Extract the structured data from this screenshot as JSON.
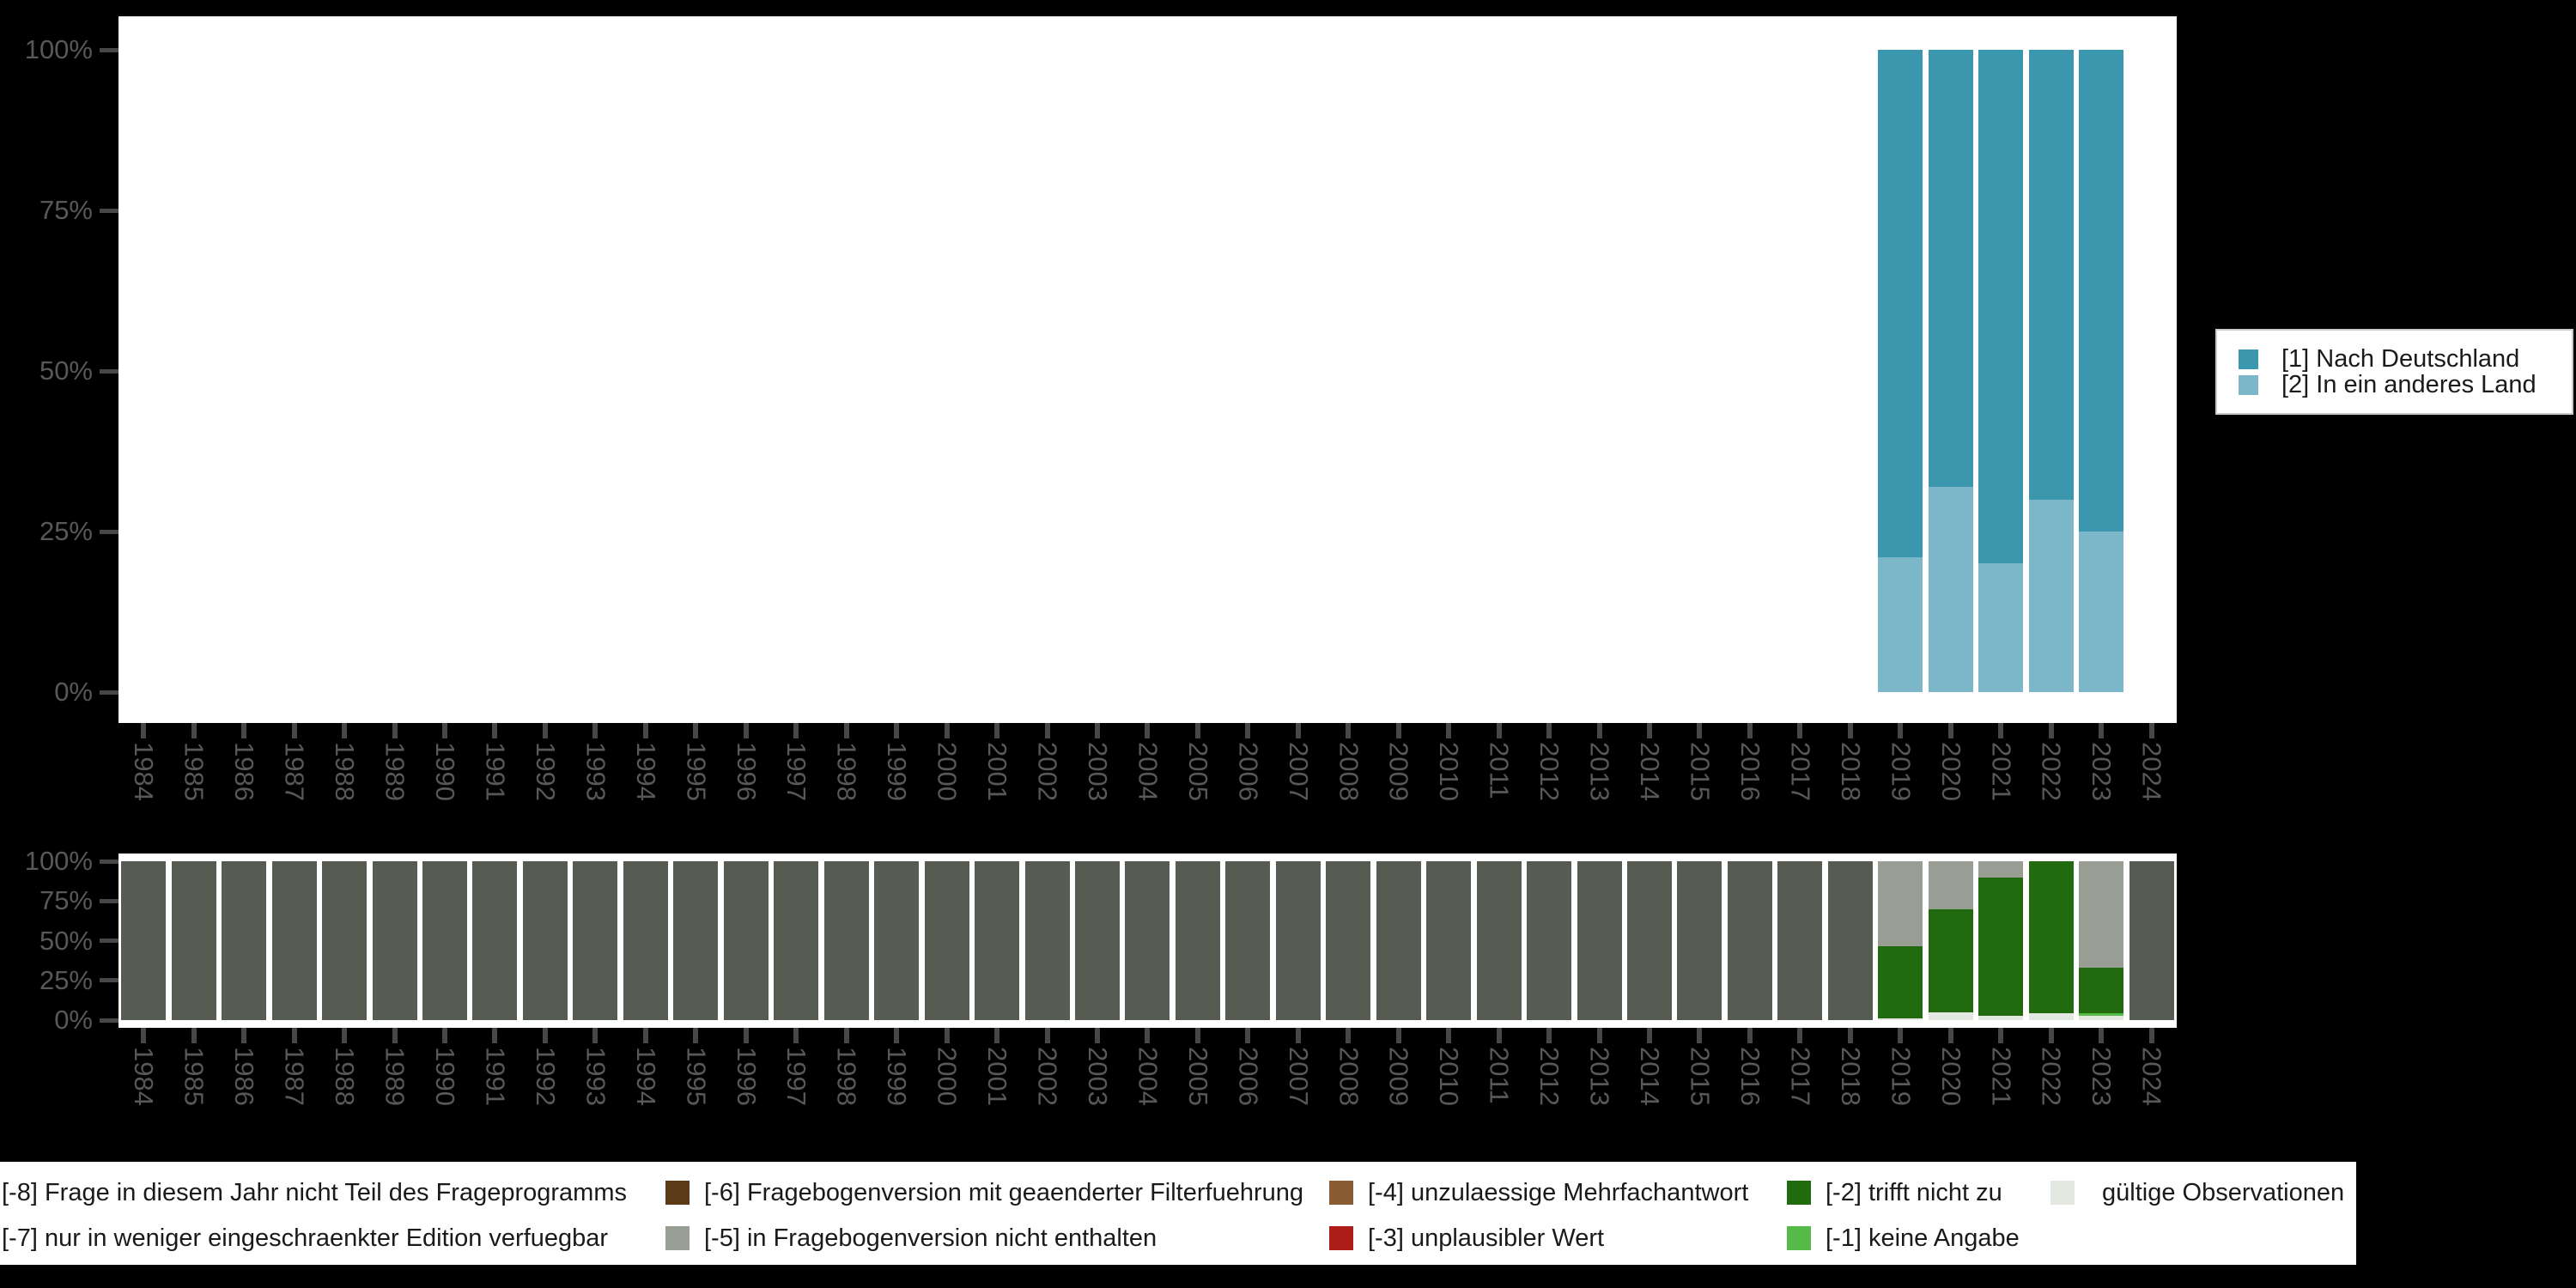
{
  "colors": {
    "background": "#000000",
    "plot_background": "#ffffff",
    "tick": "#474747",
    "axis_label": "#585858",
    "legend_text": "#1a1a1a",
    "legend_border": "#cbcbcb",
    "nach_deutschland": "#3a97ad",
    "anderes_land": "#7cb7c9",
    "not_in_program": "#565c52",
    "restricted_edition": "#999e95",
    "changed_filter": "#5d3a17",
    "not_in_version": "#999e95",
    "invalid_multiple": "#8a5c33",
    "implausible": "#ad1d18",
    "not_applicable": "#216b0e",
    "no_answer": "#55ba47",
    "valid": "#e3e8e0"
  },
  "y_axis_ticks": [
    "100%",
    "75%",
    "50%",
    "25%",
    "0%"
  ],
  "chart_data": [
    {
      "type": "bar",
      "subtype": "stacked-percent",
      "title": "",
      "xlabel": "",
      "ylabel": "",
      "ylim": [
        0,
        100
      ],
      "grid": false,
      "legend_position": "right",
      "categories": [
        "1984",
        "1985",
        "1986",
        "1987",
        "1988",
        "1989",
        "1990",
        "1991",
        "1992",
        "1993",
        "1994",
        "1995",
        "1996",
        "1997",
        "1998",
        "1999",
        "2000",
        "2001",
        "2002",
        "2003",
        "2004",
        "2005",
        "2006",
        "2007",
        "2008",
        "2009",
        "2010",
        "2011",
        "2012",
        "2013",
        "2014",
        "2015",
        "2016",
        "2017",
        "2018",
        "2019",
        "2020",
        "2021",
        "2022",
        "2023",
        "2024"
      ],
      "series": [
        {
          "name": "[1] Nach Deutschland",
          "color_key": "nach_deutschland",
          "values": [
            0,
            0,
            0,
            0,
            0,
            0,
            0,
            0,
            0,
            0,
            0,
            0,
            0,
            0,
            0,
            0,
            0,
            0,
            0,
            0,
            0,
            0,
            0,
            0,
            0,
            0,
            0,
            0,
            0,
            0,
            0,
            0,
            0,
            0,
            0,
            79,
            68,
            80,
            70,
            75,
            0
          ]
        },
        {
          "name": "[2] In ein anderes Land",
          "color_key": "anderes_land",
          "values": [
            0,
            0,
            0,
            0,
            0,
            0,
            0,
            0,
            0,
            0,
            0,
            0,
            0,
            0,
            0,
            0,
            0,
            0,
            0,
            0,
            0,
            0,
            0,
            0,
            0,
            0,
            0,
            0,
            0,
            0,
            0,
            0,
            0,
            0,
            0,
            21,
            32,
            20,
            30,
            25,
            0
          ]
        }
      ]
    },
    {
      "type": "bar",
      "subtype": "stacked-percent",
      "title": "",
      "xlabel": "",
      "ylabel": "",
      "ylim": [
        0,
        100
      ],
      "grid": false,
      "legend_position": "bottom",
      "categories": [
        "1984",
        "1985",
        "1986",
        "1987",
        "1988",
        "1989",
        "1990",
        "1991",
        "1992",
        "1993",
        "1994",
        "1995",
        "1996",
        "1997",
        "1998",
        "1999",
        "2000",
        "2001",
        "2002",
        "2003",
        "2004",
        "2005",
        "2006",
        "2007",
        "2008",
        "2009",
        "2010",
        "2011",
        "2012",
        "2013",
        "2014",
        "2015",
        "2016",
        "2017",
        "2018",
        "2019",
        "2020",
        "2021",
        "2022",
        "2023",
        "2024"
      ],
      "series": [
        {
          "name": "[-8] Frage in diesem Jahr nicht Teil des Frageprogramms",
          "color_key": "not_in_program",
          "values": [
            100,
            100,
            100,
            100,
            100,
            100,
            100,
            100,
            100,
            100,
            100,
            100,
            100,
            100,
            100,
            100,
            100,
            100,
            100,
            100,
            100,
            100,
            100,
            100,
            100,
            100,
            100,
            100,
            100,
            100,
            100,
            100,
            100,
            100,
            100,
            0,
            0,
            0,
            0,
            0,
            100
          ]
        },
        {
          "name": "[-5] in Fragebogenversion nicht enthalten",
          "color_key": "not_in_version",
          "values": [
            0,
            0,
            0,
            0,
            0,
            0,
            0,
            0,
            0,
            0,
            0,
            0,
            0,
            0,
            0,
            0,
            0,
            0,
            0,
            0,
            0,
            0,
            0,
            0,
            0,
            0,
            0,
            0,
            0,
            0,
            0,
            0,
            0,
            0,
            0,
            53.5,
            30,
            10.5,
            0,
            67,
            0
          ]
        },
        {
          "name": "[-2] trifft nicht zu",
          "color_key": "not_applicable",
          "values": [
            0,
            0,
            0,
            0,
            0,
            0,
            0,
            0,
            0,
            0,
            0,
            0,
            0,
            0,
            0,
            0,
            0,
            0,
            0,
            0,
            0,
            0,
            0,
            0,
            0,
            0,
            0,
            0,
            0,
            0,
            0,
            0,
            0,
            0,
            0,
            45.5,
            65,
            87,
            95.5,
            28.5,
            0
          ]
        },
        {
          "name": "[-1] keine Angabe",
          "color_key": "no_answer",
          "values": [
            0,
            0,
            0,
            0,
            0,
            0,
            0,
            0,
            0,
            0,
            0,
            0,
            0,
            0,
            0,
            0,
            0,
            0,
            0,
            0,
            0,
            0,
            0,
            0,
            0,
            0,
            0,
            0,
            0,
            0,
            0,
            0,
            0,
            0,
            0,
            0,
            0,
            0,
            0,
            2,
            0
          ]
        },
        {
          "name": "gültige Observationen",
          "color_key": "valid",
          "values": [
            0,
            0,
            0,
            0,
            0,
            0,
            0,
            0,
            0,
            0,
            0,
            0,
            0,
            0,
            0,
            0,
            0,
            0,
            0,
            0,
            0,
            0,
            0,
            0,
            0,
            0,
            0,
            0,
            0,
            0,
            0,
            0,
            0,
            0,
            0,
            1,
            5,
            2.5,
            4.5,
            2.5,
            0
          ]
        }
      ]
    }
  ],
  "top_legend": {
    "items": [
      {
        "label": "[1] Nach Deutschland",
        "color_key": "nach_deutschland"
      },
      {
        "label": "[2] In ein anderes Land",
        "color_key": "anderes_land"
      }
    ]
  },
  "bottom_legend": {
    "row1": [
      {
        "label": "[-8] Frage in diesem Jahr nicht Teil des Frageprogramms",
        "color_key": "not_in_program",
        "swatch_clipped": true
      },
      {
        "label": "[-6] Fragebogenversion mit geaenderter Filterfuehrung",
        "color_key": "changed_filter"
      },
      {
        "label": "[-4] unzulaessige Mehrfachantwort",
        "color_key": "invalid_multiple"
      },
      {
        "label": "[-2] trifft nicht zu",
        "color_key": "not_applicable"
      },
      {
        "label": "gültige Observationen",
        "color_key": "valid"
      }
    ],
    "row2": [
      {
        "label": "[-7] nur in weniger eingeschraenkter Edition verfuegbar",
        "color_key": "restricted_edition",
        "swatch_clipped": true
      },
      {
        "label": "[-5] in Fragebogenversion nicht enthalten",
        "color_key": "not_in_version"
      },
      {
        "label": "[-3] unplausibler Wert",
        "color_key": "implausible"
      },
      {
        "label": "[-1] keine Angabe",
        "color_key": "no_answer"
      }
    ]
  }
}
